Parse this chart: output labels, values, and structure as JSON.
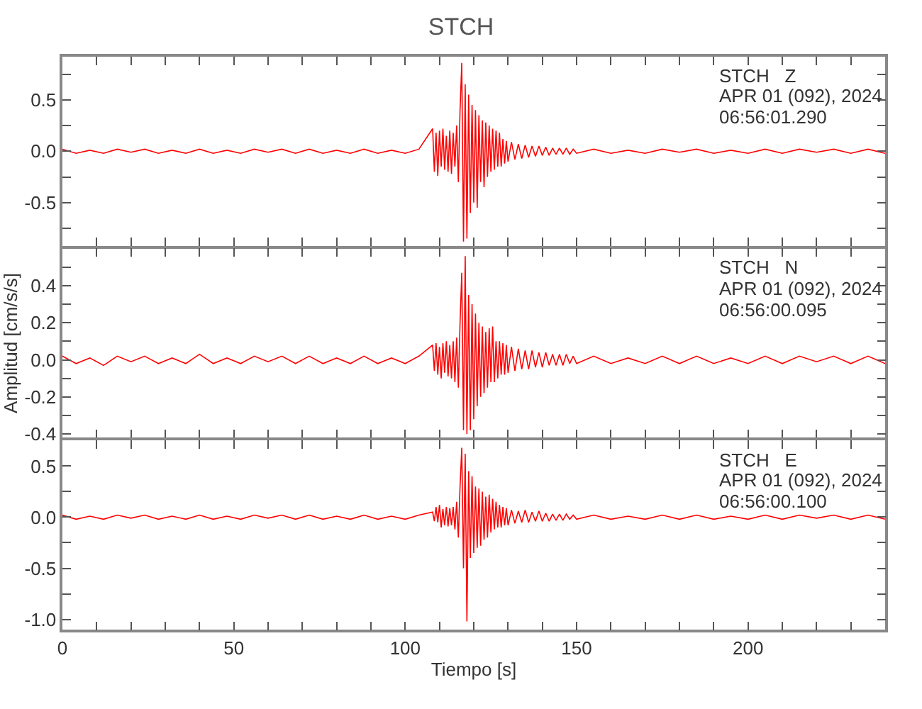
{
  "chart_data": [
    {
      "type": "line",
      "title": "STCH",
      "color": "#ff0000",
      "tick_labels": "y",
      "annotations": [
        "STCH   Z",
        "APR 01 (092), 2024",
        "06:56:01.290"
      ],
      "xlim": [
        0,
        240
      ],
      "xticks": [
        {
          "value": 0,
          "label": null
        },
        {
          "value": 10,
          "label": null
        },
        {
          "value": 20,
          "label": null
        },
        {
          "value": 30,
          "label": null
        },
        {
          "value": 40,
          "label": null
        },
        {
          "value": 50,
          "label": null
        },
        {
          "value": 60,
          "label": null
        },
        {
          "value": 70,
          "label": null
        },
        {
          "value": 80,
          "label": null
        },
        {
          "value": 90,
          "label": null
        },
        {
          "value": 100,
          "label": null
        },
        {
          "value": 110,
          "label": null
        },
        {
          "value": 120,
          "label": null
        },
        {
          "value": 130,
          "label": null
        },
        {
          "value": 140,
          "label": null
        },
        {
          "value": 150,
          "label": null
        },
        {
          "value": 160,
          "label": null
        },
        {
          "value": 170,
          "label": null
        },
        {
          "value": 180,
          "label": null
        },
        {
          "value": 190,
          "label": null
        },
        {
          "value": 200,
          "label": null
        },
        {
          "value": 210,
          "label": null
        },
        {
          "value": 220,
          "label": null
        },
        {
          "value": 230,
          "label": null
        }
      ],
      "ylim": [
        -0.92,
        0.92
      ],
      "yticks": [
        {
          "value": -0.75,
          "label": null
        },
        {
          "value": -0.5,
          "label": "-0.5"
        },
        {
          "value": -0.25,
          "label": null
        },
        {
          "value": 0,
          "label": "0.0"
        },
        {
          "value": 0.25,
          "label": null
        },
        {
          "value": 0.5,
          "label": "0.5"
        },
        {
          "value": 0.75,
          "label": null
        }
      ],
      "x": [
        0,
        4,
        8,
        12,
        16,
        20,
        24,
        28,
        32,
        36,
        40,
        44,
        48,
        52,
        56,
        60,
        64,
        68,
        72,
        76,
        80,
        84,
        88,
        92,
        96,
        100,
        104,
        108,
        108.5,
        109,
        109.5,
        110,
        110.5,
        111,
        111.5,
        112,
        112.5,
        113,
        113.5,
        114,
        114.5,
        115,
        115.5,
        116,
        116.5,
        117,
        117.5,
        118,
        118.5,
        119,
        119.5,
        120,
        120.5,
        121,
        121.5,
        122,
        122.5,
        123,
        123.5,
        124,
        124.5,
        125,
        125.5,
        126,
        126.5,
        127,
        127.5,
        128,
        128.5,
        129,
        129.5,
        130,
        131,
        132,
        133,
        134,
        135,
        136,
        137,
        138,
        139,
        140,
        141,
        142,
        143,
        144,
        145,
        146,
        147,
        148,
        149,
        150,
        155,
        160,
        165,
        170,
        175,
        180,
        185,
        190,
        195,
        200,
        205,
        210,
        215,
        220,
        225,
        230,
        235,
        240
      ],
      "values": [
        0.02,
        -0.02,
        0.01,
        -0.02,
        0.02,
        -0.01,
        0.02,
        -0.02,
        0.01,
        -0.02,
        0.02,
        -0.02,
        0.01,
        -0.02,
        0.02,
        -0.01,
        0.02,
        -0.02,
        0.02,
        -0.02,
        0.01,
        -0.02,
        0.02,
        -0.02,
        0.01,
        -0.02,
        0.02,
        0.22,
        -0.2,
        0.18,
        -0.24,
        0.2,
        -0.15,
        0.22,
        -0.18,
        0.15,
        -0.2,
        0.2,
        -0.22,
        0.18,
        -0.15,
        0.25,
        -0.3,
        0.4,
        0.86,
        -0.88,
        0.65,
        -0.85,
        0.55,
        -0.6,
        0.45,
        -0.5,
        0.4,
        -0.55,
        0.35,
        -0.3,
        0.3,
        -0.35,
        0.28,
        -0.25,
        0.25,
        -0.2,
        0.22,
        -0.18,
        0.2,
        -0.15,
        0.18,
        -0.15,
        0.12,
        -0.12,
        0.1,
        -0.1,
        0.09,
        -0.08,
        0.07,
        -0.07,
        0.06,
        -0.06,
        0.05,
        -0.05,
        0.05,
        -0.04,
        0.04,
        -0.04,
        0.03,
        -0.03,
        0.03,
        -0.03,
        0.03,
        -0.03,
        0.02,
        -0.02,
        0.02,
        -0.02,
        0.01,
        -0.02,
        0.02,
        -0.01,
        0.02,
        -0.02,
        0.01,
        -0.02,
        0.02,
        -0.02,
        0.02,
        -0.01,
        0.02,
        -0.02,
        0.02,
        -0.02
      ]
    },
    {
      "type": "line",
      "color": "#ff0000",
      "tick_labels": "y",
      "ylabel": "Amplitud [cm/s/s]",
      "annotations": [
        "STCH   N",
        "APR 01 (092), 2024",
        "06:56:00.095"
      ],
      "xlim": [
        0,
        240
      ],
      "xticks": [
        {
          "value": 0,
          "label": null
        },
        {
          "value": 10,
          "label": null
        },
        {
          "value": 20,
          "label": null
        },
        {
          "value": 30,
          "label": null
        },
        {
          "value": 40,
          "label": null
        },
        {
          "value": 50,
          "label": null
        },
        {
          "value": 60,
          "label": null
        },
        {
          "value": 70,
          "label": null
        },
        {
          "value": 80,
          "label": null
        },
        {
          "value": 90,
          "label": null
        },
        {
          "value": 100,
          "label": null
        },
        {
          "value": 110,
          "label": null
        },
        {
          "value": 120,
          "label": null
        },
        {
          "value": 130,
          "label": null
        },
        {
          "value": 140,
          "label": null
        },
        {
          "value": 150,
          "label": null
        },
        {
          "value": 160,
          "label": null
        },
        {
          "value": 170,
          "label": null
        },
        {
          "value": 180,
          "label": null
        },
        {
          "value": 190,
          "label": null
        },
        {
          "value": 200,
          "label": null
        },
        {
          "value": 210,
          "label": null
        },
        {
          "value": 220,
          "label": null
        },
        {
          "value": 230,
          "label": null
        }
      ],
      "ylim": [
        -0.42,
        0.6
      ],
      "yticks": [
        {
          "value": -0.4,
          "label": "-0.4"
        },
        {
          "value": -0.3,
          "label": null
        },
        {
          "value": -0.2,
          "label": "-0.2"
        },
        {
          "value": -0.1,
          "label": null
        },
        {
          "value": 0,
          "label": "0.0"
        },
        {
          "value": 0.1,
          "label": null
        },
        {
          "value": 0.2,
          "label": "0.2"
        },
        {
          "value": 0.3,
          "label": null
        },
        {
          "value": 0.4,
          "label": "0.4"
        },
        {
          "value": 0.5,
          "label": null
        }
      ],
      "x": [
        0,
        4,
        8,
        12,
        16,
        20,
        24,
        28,
        32,
        36,
        40,
        44,
        48,
        52,
        56,
        60,
        64,
        68,
        72,
        76,
        80,
        84,
        88,
        92,
        96,
        100,
        104,
        108,
        108.5,
        109,
        109.5,
        110,
        110.5,
        111,
        111.5,
        112,
        112.5,
        113,
        113.5,
        114,
        114.5,
        115,
        115.5,
        116,
        116.5,
        117,
        117.5,
        118,
        118.5,
        119,
        119.5,
        120,
        120.5,
        121,
        121.5,
        122,
        122.5,
        123,
        123.5,
        124,
        124.5,
        125,
        125.5,
        126,
        126.5,
        127,
        127.5,
        128,
        128.5,
        129,
        129.5,
        130,
        131,
        132,
        133,
        134,
        135,
        136,
        137,
        138,
        139,
        140,
        141,
        142,
        143,
        144,
        145,
        146,
        147,
        148,
        149,
        150,
        155,
        160,
        165,
        170,
        175,
        180,
        185,
        190,
        195,
        200,
        205,
        210,
        215,
        220,
        225,
        230,
        235,
        240
      ],
      "values": [
        0.02,
        -0.02,
        0.01,
        -0.03,
        0.02,
        -0.01,
        0.02,
        -0.02,
        0.01,
        -0.02,
        0.03,
        -0.02,
        0.01,
        -0.02,
        0.02,
        -0.01,
        0.02,
        -0.02,
        0.02,
        -0.02,
        0.01,
        -0.02,
        0.02,
        -0.02,
        0.01,
        -0.02,
        0.02,
        0.08,
        -0.06,
        0.09,
        -0.08,
        0.07,
        -0.1,
        0.09,
        -0.07,
        0.1,
        -0.09,
        0.08,
        -0.1,
        0.1,
        -0.12,
        0.12,
        -0.15,
        0.2,
        0.47,
        -0.38,
        0.56,
        -0.4,
        0.35,
        -0.38,
        0.3,
        -0.32,
        0.25,
        -0.25,
        0.2,
        -0.2,
        0.18,
        -0.18,
        0.15,
        -0.15,
        0.17,
        -0.12,
        0.18,
        -0.12,
        0.1,
        -0.1,
        0.1,
        -0.08,
        0.09,
        -0.08,
        0.08,
        -0.07,
        0.07,
        -0.06,
        0.06,
        -0.05,
        0.05,
        -0.05,
        0.05,
        -0.04,
        0.04,
        -0.04,
        0.04,
        -0.03,
        0.03,
        -0.03,
        0.03,
        -0.03,
        0.03,
        -0.02,
        0.02,
        -0.02,
        0.02,
        -0.02,
        0.01,
        -0.02,
        0.02,
        -0.02,
        0.02,
        -0.02,
        0.01,
        -0.02,
        0.02,
        -0.02,
        0.02,
        -0.01,
        0.02,
        -0.02,
        0.02,
        -0.02
      ]
    },
    {
      "type": "line",
      "color": "#ff0000",
      "xlabel": "Tiempo [s]",
      "annotations": [
        "STCH   E",
        "APR 01 (092), 2024",
        "06:56:00.100"
      ],
      "xlim": [
        0,
        240
      ],
      "xticks": [
        {
          "value": 0,
          "label": "0"
        },
        {
          "value": 10,
          "label": null
        },
        {
          "value": 20,
          "label": null
        },
        {
          "value": 30,
          "label": null
        },
        {
          "value": 40,
          "label": null
        },
        {
          "value": 50,
          "label": "50"
        },
        {
          "value": 60,
          "label": null
        },
        {
          "value": 70,
          "label": null
        },
        {
          "value": 80,
          "label": null
        },
        {
          "value": 90,
          "label": null
        },
        {
          "value": 100,
          "label": "100"
        },
        {
          "value": 110,
          "label": null
        },
        {
          "value": 120,
          "label": null
        },
        {
          "value": 130,
          "label": null
        },
        {
          "value": 140,
          "label": null
        },
        {
          "value": 150,
          "label": "150"
        },
        {
          "value": 160,
          "label": null
        },
        {
          "value": 170,
          "label": null
        },
        {
          "value": 180,
          "label": null
        },
        {
          "value": 190,
          "label": null
        },
        {
          "value": 200,
          "label": "200"
        },
        {
          "value": 210,
          "label": null
        },
        {
          "value": 220,
          "label": null
        },
        {
          "value": 230,
          "label": null
        }
      ],
      "ylim": [
        -1.1,
        0.75
      ],
      "yticks": [
        {
          "value": -1,
          "label": "-1.0"
        },
        {
          "value": -0.75,
          "label": null
        },
        {
          "value": -0.5,
          "label": "-0.5"
        },
        {
          "value": -0.25,
          "label": null
        },
        {
          "value": 0,
          "label": "0.0"
        },
        {
          "value": 0.25,
          "label": null
        },
        {
          "value": 0.5,
          "label": "0.5"
        }
      ],
      "x": [
        0,
        4,
        8,
        12,
        16,
        20,
        24,
        28,
        32,
        36,
        40,
        44,
        48,
        52,
        56,
        60,
        64,
        68,
        72,
        76,
        80,
        84,
        88,
        92,
        96,
        100,
        104,
        108,
        108.5,
        109,
        109.5,
        110,
        110.5,
        111,
        111.5,
        112,
        112.5,
        113,
        113.5,
        114,
        114.5,
        115,
        115.5,
        116,
        116.5,
        117,
        117.5,
        118,
        118.5,
        119,
        119.5,
        120,
        120.5,
        121,
        121.5,
        122,
        122.5,
        123,
        123.5,
        124,
        124.5,
        125,
        125.5,
        126,
        126.5,
        127,
        127.5,
        128,
        128.5,
        129,
        129.5,
        130,
        131,
        132,
        133,
        134,
        135,
        136,
        137,
        138,
        139,
        140,
        141,
        142,
        143,
        144,
        145,
        146,
        147,
        148,
        149,
        150,
        155,
        160,
        165,
        170,
        175,
        180,
        185,
        190,
        195,
        200,
        205,
        210,
        215,
        220,
        225,
        230,
        235,
        240
      ],
      "values": [
        0.02,
        -0.02,
        0.01,
        -0.02,
        0.02,
        -0.01,
        0.02,
        -0.02,
        0.01,
        -0.02,
        0.02,
        -0.02,
        0.01,
        -0.02,
        0.02,
        -0.01,
        0.02,
        -0.02,
        0.02,
        -0.02,
        0.01,
        -0.02,
        0.02,
        -0.02,
        0.01,
        -0.02,
        0.02,
        0.05,
        -0.04,
        0.1,
        -0.05,
        0.12,
        -0.1,
        0.08,
        -0.08,
        0.1,
        -0.09,
        0.09,
        -0.08,
        0.1,
        -0.12,
        0.15,
        -0.2,
        0.3,
        0.68,
        -0.5,
        0.62,
        -1.02,
        0.45,
        -0.4,
        0.4,
        -0.35,
        0.3,
        -0.3,
        0.28,
        -0.28,
        0.25,
        -0.22,
        0.2,
        -0.2,
        0.22,
        -0.15,
        0.18,
        -0.12,
        0.15,
        -0.1,
        0.12,
        -0.1,
        0.1,
        -0.08,
        0.09,
        -0.08,
        0.07,
        -0.06,
        0.06,
        -0.05,
        0.07,
        -0.05,
        0.05,
        -0.04,
        0.06,
        -0.04,
        0.04,
        -0.04,
        0.03,
        -0.03,
        0.03,
        -0.03,
        0.03,
        -0.02,
        0.02,
        -0.02,
        0.02,
        -0.02,
        0.01,
        -0.02,
        0.02,
        -0.02,
        0.02,
        -0.02,
        0.01,
        -0.02,
        0.02,
        -0.02,
        0.02,
        -0.01,
        0.02,
        -0.02,
        0.02,
        -0.02
      ]
    }
  ]
}
